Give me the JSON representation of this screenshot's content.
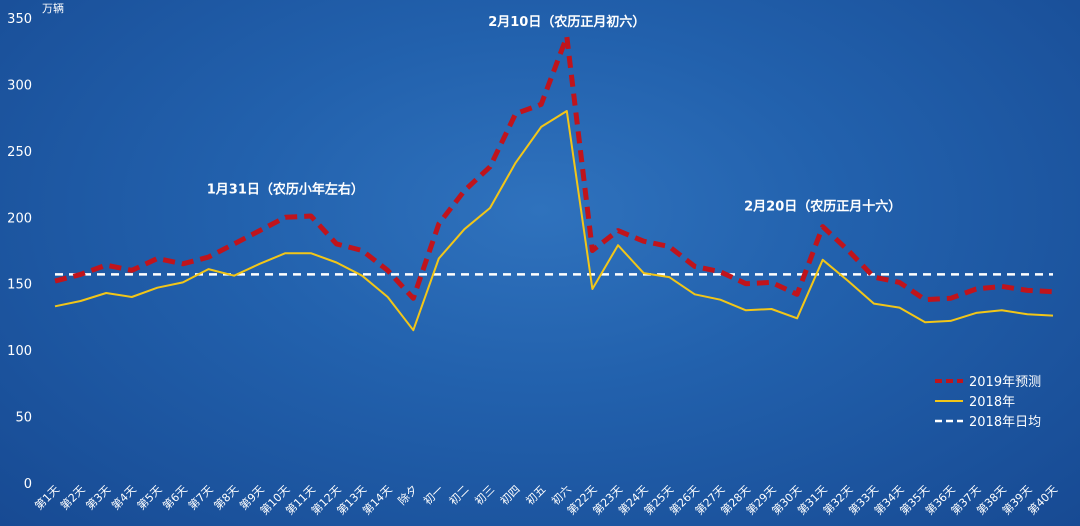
{
  "chart_data": {
    "type": "line",
    "ylabel": "万辆",
    "ylim": [
      0,
      350
    ],
    "yticks": [
      0,
      50,
      100,
      150,
      200,
      250,
      300,
      350
    ],
    "grid": false,
    "legend_position": "bottom-right",
    "categories": [
      "第1天",
      "第2天",
      "第3天",
      "第4天",
      "第5天",
      "第6天",
      "第7天",
      "第8天",
      "第9天",
      "第10天",
      "第11天",
      "第12天",
      "第13天",
      "第14天",
      "除夕",
      "初一",
      "初二",
      "初三",
      "初四",
      "初五",
      "初六",
      "第22天",
      "第23天",
      "第24天",
      "第25天",
      "第26天",
      "第27天",
      "第28天",
      "第29天",
      "第30天",
      "第31天",
      "第32天",
      "第33天",
      "第34天",
      "第35天",
      "第36天",
      "第37天",
      "第38天",
      "第39天",
      "第40天"
    ],
    "series": [
      {
        "name": "2019年预测",
        "color": "#c0141c",
        "style": "dashed",
        "values": [
          152,
          157,
          164,
          160,
          169,
          165,
          170,
          180,
          190,
          200,
          201,
          180,
          175,
          160,
          139,
          195,
          220,
          238,
          278,
          285,
          336,
          175,
          190,
          182,
          178,
          163,
          159,
          150,
          151,
          142,
          193,
          175,
          155,
          151,
          138,
          139,
          146,
          148,
          145,
          144
        ]
      },
      {
        "name": "2018年",
        "color": "#f2c618",
        "style": "solid",
        "values": [
          133,
          137,
          143,
          140,
          147,
          151,
          161,
          156,
          165,
          173,
          173,
          166,
          156,
          140,
          115,
          169,
          191,
          207,
          241,
          268,
          280,
          146,
          179,
          158,
          155,
          142,
          138,
          130,
          131,
          124,
          168,
          152,
          135,
          132,
          121,
          122,
          128,
          130,
          127,
          126
        ]
      },
      {
        "name": "2018年日均",
        "color": "#ffffff",
        "style": "dashed",
        "constant": 157
      }
    ],
    "annotations": [
      {
        "text": "1月31日（农历小年左右）",
        "category": "第10天",
        "y": 218
      },
      {
        "text": "2月10日（农历正月初六）",
        "category": "初六",
        "y": 344
      },
      {
        "text": "2月20日（农历正月十六）",
        "category": "第31天",
        "y": 205
      }
    ]
  }
}
